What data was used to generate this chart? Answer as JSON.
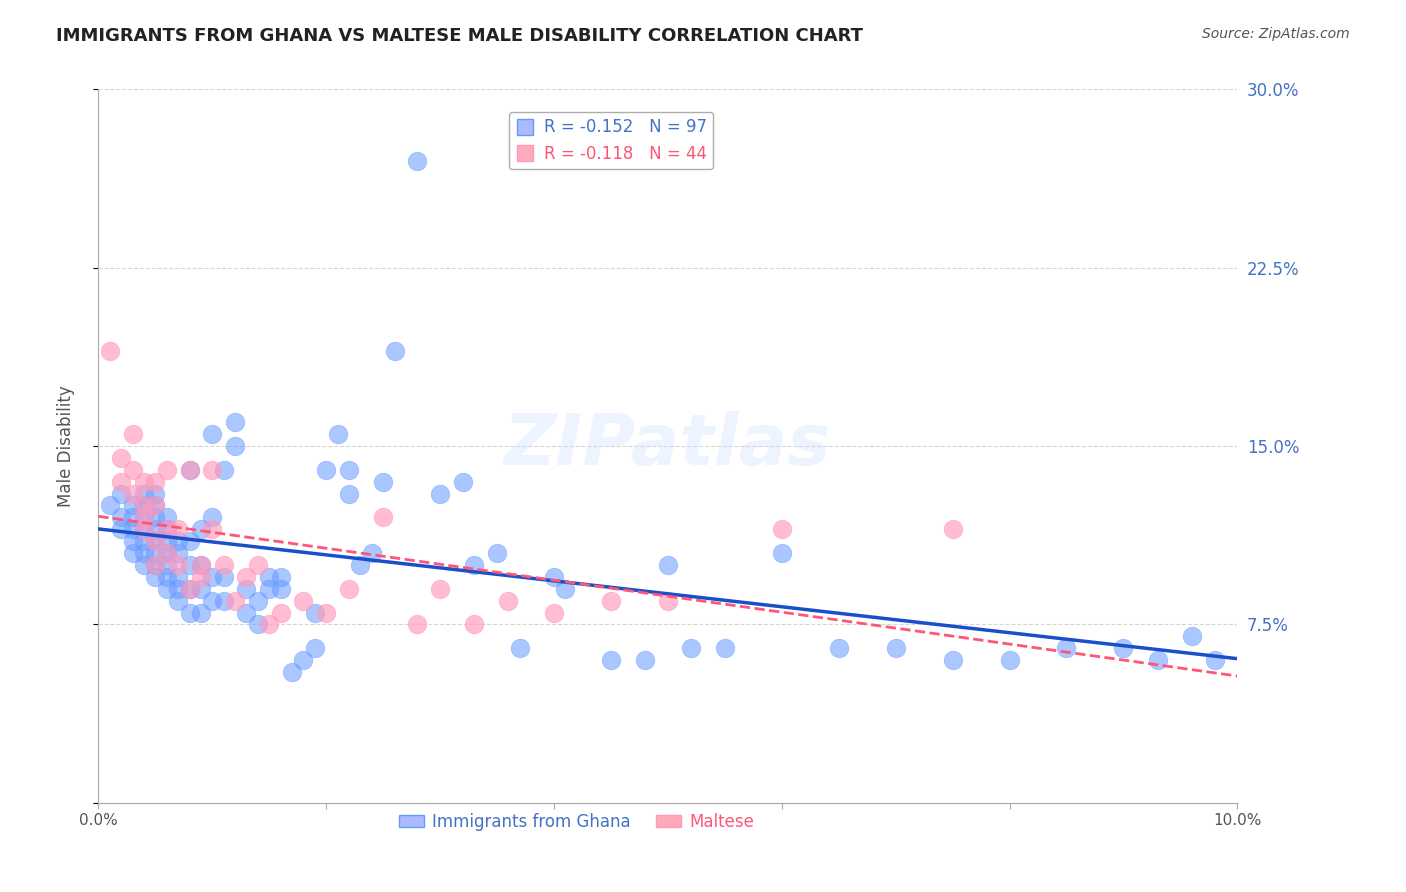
{
  "title": "IMMIGRANTS FROM GHANA VS MALTESE MALE DISABILITY CORRELATION CHART",
  "source": "Source: ZipAtlas.com",
  "xlabel": "",
  "ylabel": "Male Disability",
  "xlim": [
    0.0,
    0.1
  ],
  "ylim": [
    0.0,
    0.3
  ],
  "xticks": [
    0.0,
    0.02,
    0.04,
    0.06,
    0.08,
    0.1
  ],
  "xticklabels": [
    "0.0%",
    "",
    "",
    "",
    "",
    "10.0%"
  ],
  "yticks": [
    0.0,
    0.075,
    0.15,
    0.225,
    0.3
  ],
  "yticklabels": [
    "",
    "7.5%",
    "15.0%",
    "22.5%",
    "30.0%"
  ],
  "right_yticklabels": [
    "",
    "7.5%",
    "15.0%",
    "22.5%",
    "30.0%"
  ],
  "series1_color": "#6699ff",
  "series2_color": "#ff99bb",
  "series1_label": "Immigrants from Ghana",
  "series2_label": "Maltese",
  "series1_R": "-0.152",
  "series1_N": "97",
  "series2_R": "-0.118",
  "series2_N": "44",
  "watermark": "ZIPatlas",
  "ghana_x": [
    0.001,
    0.002,
    0.002,
    0.002,
    0.003,
    0.003,
    0.003,
    0.003,
    0.003,
    0.004,
    0.004,
    0.004,
    0.004,
    0.004,
    0.004,
    0.004,
    0.005,
    0.005,
    0.005,
    0.005,
    0.005,
    0.005,
    0.005,
    0.005,
    0.006,
    0.006,
    0.006,
    0.006,
    0.006,
    0.006,
    0.006,
    0.007,
    0.007,
    0.007,
    0.007,
    0.007,
    0.008,
    0.008,
    0.008,
    0.008,
    0.008,
    0.009,
    0.009,
    0.009,
    0.009,
    0.01,
    0.01,
    0.01,
    0.01,
    0.011,
    0.011,
    0.011,
    0.012,
    0.012,
    0.013,
    0.013,
    0.014,
    0.014,
    0.015,
    0.015,
    0.016,
    0.016,
    0.017,
    0.018,
    0.019,
    0.019,
    0.02,
    0.021,
    0.022,
    0.022,
    0.023,
    0.024,
    0.025,
    0.026,
    0.028,
    0.03,
    0.032,
    0.033,
    0.035,
    0.037,
    0.04,
    0.041,
    0.045,
    0.048,
    0.05,
    0.052,
    0.055,
    0.06,
    0.065,
    0.07,
    0.075,
    0.08,
    0.085,
    0.09,
    0.093,
    0.096,
    0.098
  ],
  "ghana_y": [
    0.125,
    0.12,
    0.13,
    0.115,
    0.11,
    0.12,
    0.105,
    0.115,
    0.125,
    0.1,
    0.11,
    0.105,
    0.115,
    0.12,
    0.125,
    0.13,
    0.095,
    0.1,
    0.105,
    0.11,
    0.115,
    0.12,
    0.125,
    0.13,
    0.09,
    0.095,
    0.1,
    0.105,
    0.11,
    0.115,
    0.12,
    0.085,
    0.09,
    0.095,
    0.105,
    0.11,
    0.08,
    0.09,
    0.1,
    0.11,
    0.14,
    0.08,
    0.09,
    0.1,
    0.115,
    0.085,
    0.095,
    0.12,
    0.155,
    0.085,
    0.095,
    0.14,
    0.15,
    0.16,
    0.08,
    0.09,
    0.075,
    0.085,
    0.09,
    0.095,
    0.09,
    0.095,
    0.055,
    0.06,
    0.065,
    0.08,
    0.14,
    0.155,
    0.13,
    0.14,
    0.1,
    0.105,
    0.135,
    0.19,
    0.27,
    0.13,
    0.135,
    0.1,
    0.105,
    0.065,
    0.095,
    0.09,
    0.06,
    0.06,
    0.1,
    0.065,
    0.065,
    0.105,
    0.065,
    0.065,
    0.06,
    0.06,
    0.065,
    0.065,
    0.06,
    0.07,
    0.06
  ],
  "maltese_x": [
    0.001,
    0.002,
    0.002,
    0.003,
    0.003,
    0.003,
    0.004,
    0.004,
    0.004,
    0.004,
    0.005,
    0.005,
    0.005,
    0.005,
    0.006,
    0.006,
    0.006,
    0.007,
    0.007,
    0.008,
    0.008,
    0.009,
    0.009,
    0.01,
    0.01,
    0.011,
    0.012,
    0.013,
    0.014,
    0.015,
    0.016,
    0.018,
    0.02,
    0.022,
    0.025,
    0.028,
    0.03,
    0.033,
    0.036,
    0.04,
    0.045,
    0.05,
    0.06,
    0.075
  ],
  "maltese_y": [
    0.19,
    0.135,
    0.145,
    0.13,
    0.14,
    0.155,
    0.115,
    0.12,
    0.125,
    0.135,
    0.1,
    0.11,
    0.125,
    0.135,
    0.105,
    0.115,
    0.14,
    0.1,
    0.115,
    0.09,
    0.14,
    0.095,
    0.1,
    0.115,
    0.14,
    0.1,
    0.085,
    0.095,
    0.1,
    0.075,
    0.08,
    0.085,
    0.08,
    0.09,
    0.12,
    0.075,
    0.09,
    0.075,
    0.085,
    0.08,
    0.085,
    0.085,
    0.115,
    0.115
  ],
  "background_color": "#ffffff",
  "grid_color": "#cccccc",
  "tick_color_right": "#4472c4",
  "tick_color_bottom": "#555555"
}
